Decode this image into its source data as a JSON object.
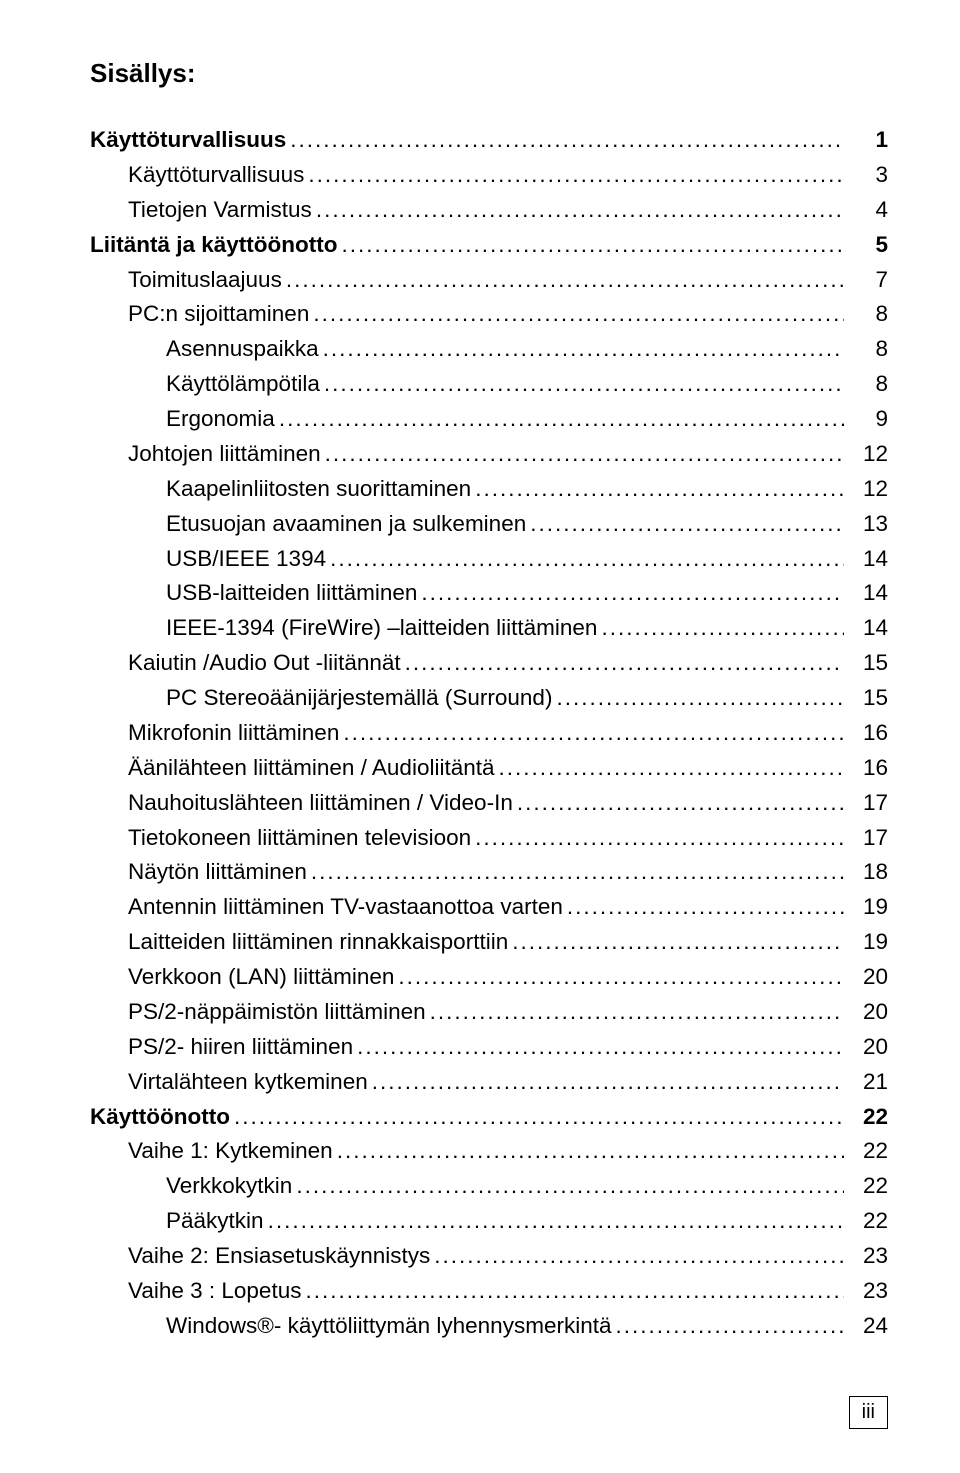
{
  "title": "Sisällys:",
  "page_label": "iii",
  "entries": [
    {
      "level": 0,
      "label": "Käyttöturvallisuus",
      "page": "1"
    },
    {
      "level": 1,
      "label": "Käyttöturvallisuus",
      "page": "3"
    },
    {
      "level": 1,
      "label": "Tietojen Varmistus",
      "page": "4"
    },
    {
      "level": 0,
      "label": "Liitäntä ja käyttöönotto",
      "page": "5"
    },
    {
      "level": 1,
      "label": "Toimituslaajuus",
      "page": "7"
    },
    {
      "level": 1,
      "label": "PC:n sijoittaminen",
      "page": "8"
    },
    {
      "level": 2,
      "label": "Asennuspaikka",
      "page": "8"
    },
    {
      "level": 2,
      "label": "Käyttölämpötila",
      "page": "8"
    },
    {
      "level": 2,
      "label": "Ergonomia",
      "page": "9"
    },
    {
      "level": 1,
      "label": "Johtojen liittäminen",
      "page": "12"
    },
    {
      "level": 2,
      "label": "Kaapelinliitosten suorittaminen",
      "page": "12"
    },
    {
      "level": 2,
      "label": "Etusuojan avaaminen ja sulkeminen",
      "page": "13"
    },
    {
      "level": 2,
      "label": "USB/IEEE 1394",
      "page": "14"
    },
    {
      "level": 2,
      "label": "USB-laitteiden liittäminen",
      "page": "14"
    },
    {
      "level": 2,
      "label": "IEEE-1394 (FireWire) –laitteiden liittäminen",
      "page": "14"
    },
    {
      "level": 1,
      "label": "Kaiutin /Audio Out  -liitännät",
      "page": "15"
    },
    {
      "level": 2,
      "label": "PC Stereoäänijärjestemällä (Surround)",
      "page": "15"
    },
    {
      "level": 1,
      "label": "Mikrofonin liittäminen",
      "page": "16"
    },
    {
      "level": 1,
      "label": "Äänilähteen liittäminen / Audioliitäntä",
      "page": "16"
    },
    {
      "level": 1,
      "label": "Nauhoituslähteen liittäminen / Video-In",
      "page": "17"
    },
    {
      "level": 1,
      "label": "Tietokoneen liittäminen televisioon",
      "page": "17"
    },
    {
      "level": 1,
      "label": "Näytön liittäminen",
      "page": "18"
    },
    {
      "level": 1,
      "label": "Antennin liittäminen TV-vastaanottoa varten",
      "page": "19"
    },
    {
      "level": 1,
      "label": "Laitteiden liittäminen rinnakkaisporttiin",
      "page": "19"
    },
    {
      "level": 1,
      "label": "Verkkoon (LAN) liittäminen",
      "page": "20"
    },
    {
      "level": 1,
      "label": "PS/2-näppäimistön liittäminen",
      "page": "20"
    },
    {
      "level": 1,
      "label": "PS/2- hiiren liittäminen",
      "page": "20"
    },
    {
      "level": 1,
      "label": "Virtalähteen kytkeminen",
      "page": "21"
    },
    {
      "level": 0,
      "label": "Käyttöönotto",
      "page": "22"
    },
    {
      "level": 1,
      "label": "Vaihe 1: Kytkeminen",
      "page": "22"
    },
    {
      "level": 2,
      "label": "Verkkokytkin",
      "page": "22"
    },
    {
      "level": 2,
      "label": "Pääkytkin",
      "page": "22"
    },
    {
      "level": 1,
      "label": "Vaihe 2: Ensiasetuskäynnistys",
      "page": "23"
    },
    {
      "level": 1,
      "label": "Vaihe 3 : Lopetus",
      "page": "23"
    },
    {
      "level": 2,
      "label": "Windows®- käyttöliittymän lyhennysmerkintä",
      "page": "24"
    }
  ]
}
